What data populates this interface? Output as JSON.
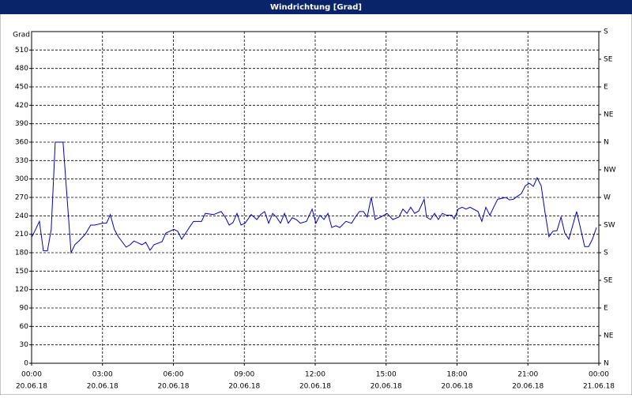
{
  "window_title": "Windrichtung [Grad]",
  "chart_data": {
    "type": "line",
    "y_label": "Grad",
    "xlim": [
      0,
      24
    ],
    "xticks": [
      {
        "value": 0,
        "label": "00:00"
      },
      {
        "value": 3,
        "label": "03:00"
      },
      {
        "value": 6,
        "label": "06:00"
      },
      {
        "value": 9,
        "label": "09:00"
      },
      {
        "value": 12,
        "label": "12:00"
      },
      {
        "value": 15,
        "label": "15:00"
      },
      {
        "value": 18,
        "label": "18:00"
      },
      {
        "value": 21,
        "label": "21:00"
      },
      {
        "value": 24,
        "label": "00:00"
      }
    ],
    "xtick_dates": [
      "20.06.18",
      "20.06.18",
      "20.06.18",
      "20.06.18",
      "20.06.18",
      "20.06.18",
      "20.06.18",
      "20.06.18",
      "21.06.18"
    ],
    "ylim": [
      0,
      540
    ],
    "yticks": [
      0,
      30,
      60,
      90,
      120,
      150,
      180,
      210,
      240,
      270,
      300,
      330,
      360,
      390,
      420,
      450,
      480,
      510
    ],
    "y2lim": [
      0,
      540
    ],
    "y2ticks": [
      {
        "value": 0,
        "label": "N"
      },
      {
        "value": 45,
        "label": "NE"
      },
      {
        "value": 90,
        "label": "E"
      },
      {
        "value": 135,
        "label": "SE"
      },
      {
        "value": 180,
        "label": "S"
      },
      {
        "value": 225,
        "label": "SW"
      },
      {
        "value": 270,
        "label": "W"
      },
      {
        "value": 315,
        "label": "NW"
      },
      {
        "value": 360,
        "label": "N"
      },
      {
        "value": 405,
        "label": "NE"
      },
      {
        "value": 450,
        "label": "E"
      },
      {
        "value": 495,
        "label": "SE"
      },
      {
        "value": 540,
        "label": "S"
      }
    ],
    "grid": true,
    "series": [
      {
        "color": "#0000c0",
        "x": [
          0,
          0.17,
          0.33,
          0.5,
          0.67,
          0.83,
          1.0,
          1.33,
          1.5,
          1.67,
          1.83,
          2.0,
          2.27,
          2.5,
          2.67,
          3.0,
          3.17,
          3.33,
          3.5,
          3.67,
          4.0,
          4.17,
          4.33,
          4.5,
          4.67,
          4.83,
          5.01,
          5.18,
          5.52,
          5.68,
          6.02,
          6.18,
          6.35,
          6.52,
          6.69,
          6.85,
          7.19,
          7.35,
          7.69,
          8.02,
          8.19,
          8.36,
          8.52,
          8.69,
          8.86,
          9.03,
          9.29,
          9.53,
          9.69,
          9.86,
          10.03,
          10.2,
          10.36,
          10.53,
          10.7,
          10.86,
          11.03,
          11.2,
          11.37,
          11.63,
          11.87,
          12.03,
          12.2,
          12.37,
          12.54,
          12.7,
          12.87,
          13.04,
          13.3,
          13.54,
          13.7,
          13.87,
          14.04,
          14.2,
          14.37,
          14.54,
          14.77,
          15.04,
          15.28,
          15.54,
          15.71,
          15.88,
          16.04,
          16.21,
          16.38,
          16.61,
          16.71,
          16.88,
          17.05,
          17.21,
          17.38,
          17.55,
          17.78,
          17.88,
          18.05,
          18.22,
          18.38,
          18.55,
          18.89,
          19.05,
          19.22,
          19.39,
          19.55,
          19.72,
          20.06,
          20.22,
          20.39,
          20.56,
          20.72,
          20.89,
          21.06,
          21.23,
          21.39,
          21.56,
          21.73,
          21.89,
          22.06,
          22.23,
          22.4,
          22.56,
          22.73,
          22.9,
          23.06,
          23.23,
          23.4,
          23.57,
          23.73,
          23.9
        ],
        "values": [
          205,
          218,
          231,
          183,
          183,
          218,
          360,
          360,
          270,
          180,
          193,
          199,
          210,
          225,
          225,
          228,
          228,
          242,
          218,
          206,
          189,
          193,
          199,
          196,
          193,
          197,
          184,
          193,
          198,
          212,
          218,
          215,
          202,
          212,
          222,
          231,
          231,
          244,
          242,
          247,
          238,
          225,
          229,
          244,
          225,
          228,
          242,
          234,
          242,
          247,
          228,
          244,
          238,
          228,
          244,
          228,
          237,
          234,
          228,
          231,
          251,
          228,
          241,
          234,
          244,
          221,
          224,
          221,
          231,
          228,
          238,
          247,
          247,
          238,
          270,
          234,
          238,
          244,
          234,
          238,
          251,
          244,
          254,
          244,
          248,
          267,
          238,
          234,
          244,
          234,
          244,
          241,
          241,
          235,
          251,
          254,
          251,
          254,
          247,
          231,
          254,
          241,
          254,
          267,
          270,
          266,
          267,
          272,
          276,
          289,
          293,
          288,
          302,
          289,
          244,
          206,
          215,
          216,
          238,
          212,
          202,
          225,
          247,
          219,
          190,
          190,
          202,
          221
        ]
      }
    ]
  }
}
